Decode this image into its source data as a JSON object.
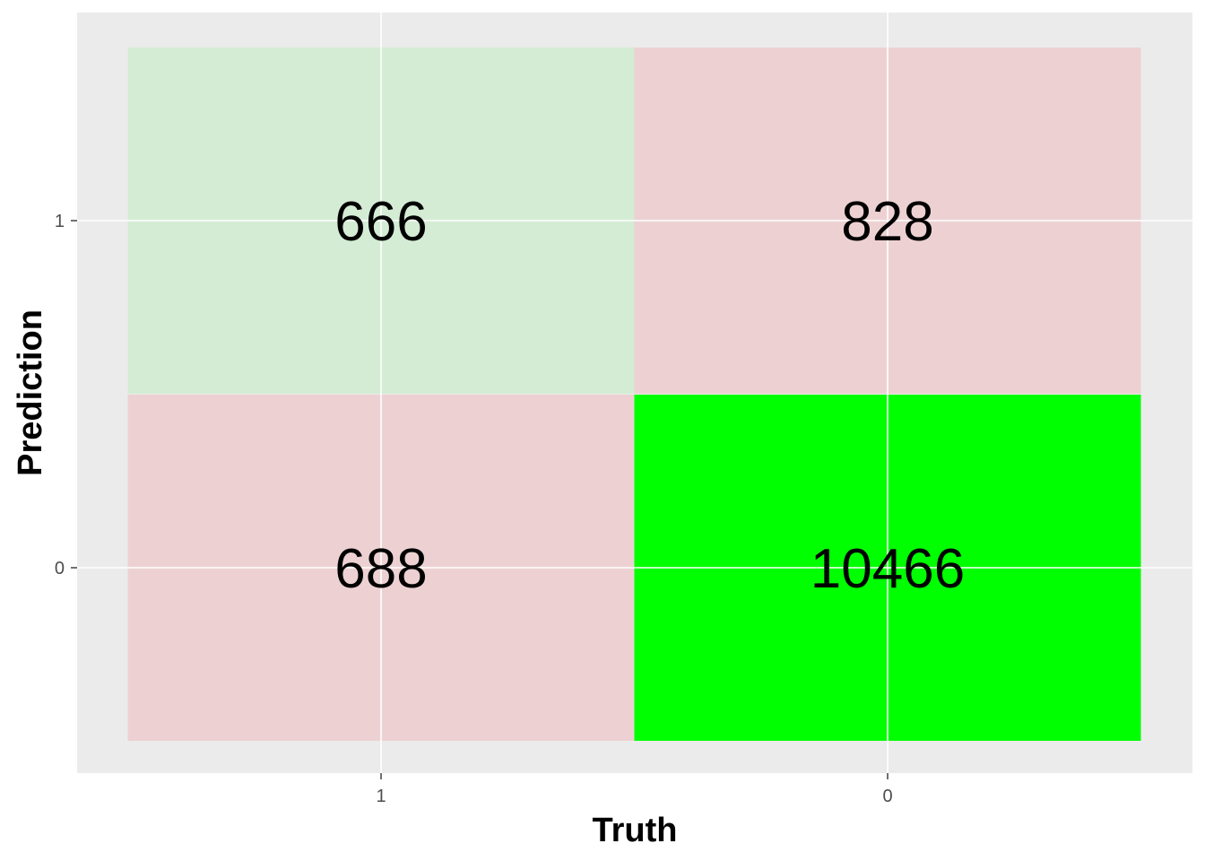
{
  "chart_data": {
    "type": "heatmap",
    "title": "",
    "xlabel": "Truth",
    "ylabel": "Prediction",
    "x_categories": [
      "1",
      "0"
    ],
    "y_categories": [
      "0",
      "1"
    ],
    "cells": [
      {
        "truth": "1",
        "prediction": "1",
        "value": 666,
        "color": "#d4ecd4"
      },
      {
        "truth": "0",
        "prediction": "1",
        "value": 828,
        "color": "#edd1d2"
      },
      {
        "truth": "1",
        "prediction": "0",
        "value": 688,
        "color": "#edd1d2"
      },
      {
        "truth": "0",
        "prediction": "0",
        "value": 10466,
        "color": "#00ff00"
      }
    ],
    "grid": true,
    "legend": "none",
    "panel_background": "#ebebeb",
    "gridline_color": "#ffffff"
  }
}
